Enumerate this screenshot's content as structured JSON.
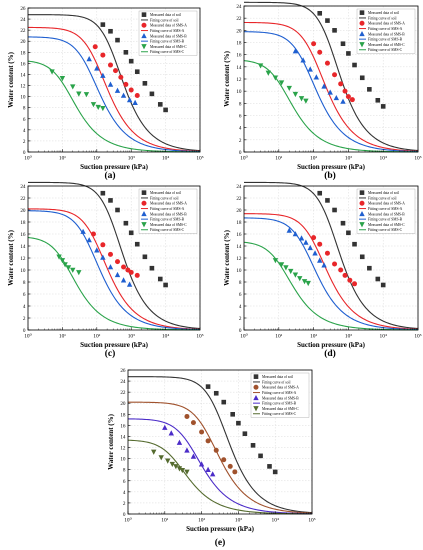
{
  "figure": {
    "panel_labels": [
      "(a)",
      "(b)",
      "(c)",
      "(d)",
      "(e)"
    ]
  },
  "colors": {
    "soil": "#333333",
    "SMS-A": "#e8262a",
    "SMS-B": "#1f5fd0",
    "SMS-C": "#2aa34a",
    "SMS-A-e": "#a0522d",
    "SMS-B-e": "#4b2cc8",
    "SMS-C-e": "#556b2f",
    "grid": "#d0d0d0"
  },
  "chart_data": [
    {
      "panel": "(a)",
      "type": "scatter",
      "xlabel": "Suction pressure (kPa)",
      "ylabel": "Water content (%)",
      "xscale": "log",
      "xlim": [
        1,
        100000
      ],
      "ylim": [
        0,
        26
      ],
      "yticks": [
        0,
        2,
        4,
        6,
        8,
        10,
        12,
        14,
        16,
        18,
        20,
        22,
        24,
        26
      ],
      "xtick_labels": [
        "10⁰",
        "10¹",
        "10²",
        "10³",
        "10⁴",
        "10⁵"
      ],
      "grid": true,
      "legend_position": "top-right",
      "legend": [
        "Measured data of soil",
        "Fitting curve of soil",
        "Measured data of SMS-A",
        "Fitting curve of SMS-A",
        "Measured data of SMS-B",
        "Fitting curve of SMS-B",
        "Measured data of SMS-C",
        "Fitting curve of SMS-C"
      ],
      "series": [
        {
          "name": "soil",
          "marker": "square",
          "fit": {
            "ws": 24.8,
            "a": 300,
            "n": 1.6,
            "m": 0.5
          },
          "x": [
            150,
            250,
            400,
            700,
            1000,
            1500,
            2500,
            4000,
            7000,
            10000
          ],
          "y": [
            23.0,
            21.8,
            20.2,
            18.0,
            16.4,
            14.5,
            12.4,
            10.5,
            8.6,
            7.6
          ]
        },
        {
          "name": "SMS-A",
          "marker": "circle",
          "fit": {
            "ws": 22.5,
            "a": 100,
            "n": 1.5,
            "m": 0.5
          },
          "x": [
            90,
            150,
            250,
            350,
            500,
            700,
            1000,
            1500
          ],
          "y": [
            19.0,
            17.5,
            15.7,
            14.7,
            13.5,
            12.2,
            11.2,
            10.2
          ]
        },
        {
          "name": "SMS-B",
          "marker": "triangle",
          "fit": {
            "ws": 20.8,
            "a": 60,
            "n": 1.5,
            "m": 0.5
          },
          "x": [
            60,
            100,
            150,
            250,
            400,
            600,
            900,
            1300
          ],
          "y": [
            16.8,
            15.1,
            13.8,
            12.2,
            11.1,
            10.2,
            9.4,
            8.9
          ]
        },
        {
          "name": "SMS-C",
          "marker": "triangle-down",
          "fit": {
            "ws": 16.6,
            "a": 12,
            "n": 1.5,
            "m": 0.5
          },
          "x": [
            5,
            10,
            20,
            30,
            50,
            80,
            110,
            150
          ],
          "y": [
            14.5,
            13.3,
            11.8,
            10.5,
            10.4,
            8.6,
            8.1,
            7.9
          ]
        }
      ]
    },
    {
      "panel": "(b)",
      "type": "scatter",
      "xlabel": "Suction pressure (kPa)",
      "ylabel": "Water content (%)",
      "xscale": "log",
      "xlim": [
        1,
        100000
      ],
      "ylim": [
        0,
        24
      ],
      "yticks": [
        0,
        2,
        4,
        6,
        8,
        10,
        12,
        14,
        16,
        18,
        20,
        22,
        24
      ],
      "xtick_labels": [
        "10⁰",
        "10¹",
        "10²",
        "10³",
        "10⁴",
        "10⁵"
      ],
      "grid": true,
      "legend_position": "top-right",
      "legend": [
        "Measured data of soil",
        "Fitting curve of soil",
        "Measured data of SMS-A",
        "Fitting curve of SMS-A",
        "Measured data of SMS-B",
        "Fitting curve of SMS-B",
        "Measured data of SMS-C",
        "Fitting curve of SMS-C"
      ],
      "series": [
        {
          "name": "soil",
          "marker": "square",
          "fit": {
            "ws": 24.6,
            "a": 300,
            "n": 1.6,
            "m": 0.5
          },
          "x": [
            150,
            250,
            400,
            700,
            1000,
            1500,
            2500,
            4000,
            7000,
            10000
          ],
          "y": [
            22.8,
            21.6,
            20.0,
            17.8,
            16.2,
            14.3,
            12.2,
            10.3,
            8.5,
            7.5
          ]
        },
        {
          "name": "SMS-A",
          "marker": "circle",
          "fit": {
            "ws": 21.3,
            "a": 110,
            "n": 1.5,
            "m": 0.5
          },
          "x": [
            100,
            150,
            250,
            400,
            600,
            800,
            1000,
            1300
          ],
          "y": [
            17.8,
            16.4,
            14.6,
            12.7,
            11.2,
            10.0,
            9.1,
            8.6
          ]
        },
        {
          "name": "SMS-B",
          "marker": "triangle",
          "fit": {
            "ws": 19.8,
            "a": 60,
            "n": 1.5,
            "m": 0.5
          },
          "x": [
            30,
            50,
            80,
            120,
            200,
            300,
            450,
            700
          ],
          "y": [
            16.6,
            15.1,
            13.6,
            12.3,
            10.8,
            9.8,
            8.9,
            8.3
          ]
        },
        {
          "name": "SMS-C",
          "marker": "triangle-down",
          "fit": {
            "ws": 15.2,
            "a": 12,
            "n": 1.5,
            "m": 0.5
          },
          "x": [
            3,
            5,
            8,
            12,
            20,
            30,
            45,
            60
          ],
          "y": [
            14.2,
            13.0,
            12.2,
            11.4,
            10.5,
            9.5,
            8.8,
            8.4
          ]
        }
      ]
    },
    {
      "panel": "(c)",
      "type": "scatter",
      "xlabel": "Suction pressure (kPa)",
      "ylabel": "Water content (%)",
      "xscale": "log",
      "xlim": [
        1,
        100000
      ],
      "ylim": [
        0,
        24
      ],
      "yticks": [
        0,
        2,
        4,
        6,
        8,
        10,
        12,
        14,
        16,
        18,
        20,
        22,
        24
      ],
      "xtick_labels": [
        "10⁰",
        "10¹",
        "10²",
        "10³",
        "10⁴",
        "10⁵"
      ],
      "grid": true,
      "legend_position": "top-right",
      "legend": [
        "Measured data of soil",
        "Fitting curve of soil",
        "Measured data of SMS-A",
        "Fitting curve of SMS-A",
        "Measured data of SMS-B",
        "Fitting curve of SMS-B",
        "Measured data of SMS-C",
        "Fitting curve of SMS-C"
      ],
      "series": [
        {
          "name": "soil",
          "marker": "square",
          "fit": {
            "ws": 24.6,
            "a": 300,
            "n": 1.6,
            "m": 0.5
          },
          "x": [
            150,
            250,
            400,
            700,
            1000,
            1500,
            2500,
            4000,
            7000,
            10000
          ],
          "y": [
            22.8,
            21.6,
            20.0,
            17.8,
            16.2,
            14.3,
            12.2,
            10.3,
            8.5,
            7.5
          ]
        },
        {
          "name": "SMS-A",
          "marker": "circle",
          "fit": {
            "ws": 20.2,
            "a": 100,
            "n": 1.5,
            "m": 0.5
          },
          "x": [
            80,
            150,
            250,
            400,
            600,
            800,
            1000,
            1500
          ],
          "y": [
            16.0,
            14.2,
            12.6,
            11.4,
            10.5,
            10.0,
            9.6,
            9.1
          ]
        },
        {
          "name": "SMS-B",
          "marker": "triangle",
          "fit": {
            "ws": 19.9,
            "a": 60,
            "n": 1.5,
            "m": 0.5
          },
          "x": [
            40,
            60,
            100,
            150,
            250,
            400,
            600,
            900
          ],
          "y": [
            16.4,
            15.0,
            13.3,
            12.1,
            10.5,
            9.2,
            8.3,
            7.6
          ]
        },
        {
          "name": "SMS-C",
          "marker": "triangle-down",
          "fit": {
            "ws": 15.6,
            "a": 12,
            "n": 1.5,
            "m": 0.5
          },
          "x": [
            8,
            10,
            12,
            15,
            20,
            30
          ],
          "y": [
            12.2,
            11.6,
            10.9,
            10.4,
            10.0,
            9.6
          ]
        }
      ]
    },
    {
      "panel": "(d)",
      "type": "scatter",
      "xlabel": "Suction pressure (kPa)",
      "ylabel": "Water content (%)",
      "xscale": "log",
      "xlim": [
        1,
        100000
      ],
      "ylim": [
        0,
        24
      ],
      "yticks": [
        0,
        2,
        4,
        6,
        8,
        10,
        12,
        14,
        16,
        18,
        20,
        22,
        24
      ],
      "xtick_labels": [
        "10⁰",
        "10¹",
        "10²",
        "10³",
        "10⁴",
        "10⁵"
      ],
      "grid": true,
      "legend_position": "top-right",
      "legend": [
        "Measured data of soil",
        "Fitting curve of soil",
        "Measured data of SMS-A",
        "Fitting curve of SMS-A",
        "Measured data of SMS-B",
        "Fitting curve of SMS-B",
        "Measured data of SMS-C",
        "Fitting curve of SMS-C"
      ],
      "series": [
        {
          "name": "soil",
          "marker": "square",
          "fit": {
            "ws": 24.6,
            "a": 300,
            "n": 1.6,
            "m": 0.5
          },
          "x": [
            150,
            250,
            400,
            700,
            1000,
            1500,
            2500,
            4000,
            7000,
            10000
          ],
          "y": [
            22.8,
            21.6,
            20.0,
            17.8,
            16.2,
            14.3,
            12.2,
            10.3,
            8.5,
            7.5
          ]
        },
        {
          "name": "SMS-A",
          "marker": "circle",
          "fit": {
            "ws": 19.4,
            "a": 120,
            "n": 1.5,
            "m": 0.5
          },
          "x": [
            100,
            150,
            250,
            400,
            600,
            800,
            1100,
            1500
          ],
          "y": [
            15.4,
            14.3,
            12.8,
            11.0,
            10.0,
            9.1,
            8.3,
            7.7
          ]
        },
        {
          "name": "SMS-B",
          "marker": "triangle",
          "fit": {
            "ws": 18.7,
            "a": 60,
            "n": 1.5,
            "m": 0.5
          },
          "x": [
            20,
            30,
            45,
            60,
            80,
            110,
            150,
            200
          ],
          "y": [
            16.6,
            16.0,
            15.3,
            14.6,
            13.7,
            12.8,
            11.6,
            10.8
          ]
        },
        {
          "name": "SMS-C",
          "marker": "triangle-down",
          "fit": {
            "ws": 14.8,
            "a": 12,
            "n": 1.5,
            "m": 0.5
          },
          "x": [
            8,
            12,
            16,
            22,
            30,
            40,
            55,
            70
          ],
          "y": [
            11.6,
            10.9,
            10.4,
            9.8,
            9.2,
            8.6,
            8.1,
            7.8
          ]
        }
      ]
    },
    {
      "panel": "(e)",
      "type": "scatter",
      "xlabel": "Suction pressure (kPa)",
      "ylabel": "Water content (%)",
      "xscale": "log",
      "xlim": [
        1,
        100000
      ],
      "ylim": [
        0,
        26
      ],
      "yticks": [
        0,
        2,
        4,
        6,
        8,
        10,
        12,
        14,
        16,
        18,
        20,
        22,
        24,
        26
      ],
      "xtick_labels": [
        "10⁰",
        "10¹",
        "10²",
        "10³",
        "10⁴",
        "10⁵"
      ],
      "grid": true,
      "legend_position": "top-right",
      "legend": [
        "Measured data of soil",
        "Fitting curve of soil",
        "Measured data of SMS-A",
        "Fitting curve of SMS-A",
        "Measured data of SMS-B",
        "Fitting curve of SMS-B",
        "Measured data of SMS-C",
        "Fitting curve of SMS-C"
      ],
      "series": [
        {
          "name": "soil",
          "marker": "square",
          "fit": {
            "ws": 24.8,
            "a": 300,
            "n": 1.6,
            "m": 0.5
          },
          "x": [
            150,
            250,
            400,
            700,
            1000,
            1500,
            2500,
            4000,
            7000,
            10000
          ],
          "y": [
            23.0,
            21.8,
            20.2,
            18.0,
            16.4,
            14.5,
            12.4,
            10.5,
            8.6,
            7.6
          ]
        },
        {
          "name": "SMS-A",
          "marker": "circle",
          "fit": {
            "ws": 20.2,
            "a": 150,
            "n": 1.5,
            "m": 0.5
          },
          "x": [
            40,
            60,
            100,
            150,
            250,
            400,
            600,
            800
          ],
          "y": [
            17.6,
            16.5,
            14.8,
            13.2,
            11.5,
            9.8,
            8.6,
            7.6
          ]
        },
        {
          "name": "SMS-B",
          "marker": "triangle",
          "fit": {
            "ws": 17.2,
            "a": 50,
            "n": 1.5,
            "m": 0.5
          },
          "x": [
            10,
            15,
            25,
            40,
            60,
            100,
            150,
            200
          ],
          "y": [
            15.6,
            14.6,
            12.9,
            11.5,
            10.4,
            9.0,
            8.0,
            7.2
          ]
        },
        {
          "name": "SMS-C",
          "marker": "triangle-down",
          "fit": {
            "ws": 13.4,
            "a": 20,
            "n": 1.5,
            "m": 0.5
          },
          "x": [
            5,
            8,
            12,
            16,
            20,
            25,
            30,
            40
          ],
          "y": [
            11.2,
            10.2,
            9.6,
            9.0,
            8.6,
            8.2,
            7.9,
            7.6
          ]
        }
      ]
    }
  ]
}
